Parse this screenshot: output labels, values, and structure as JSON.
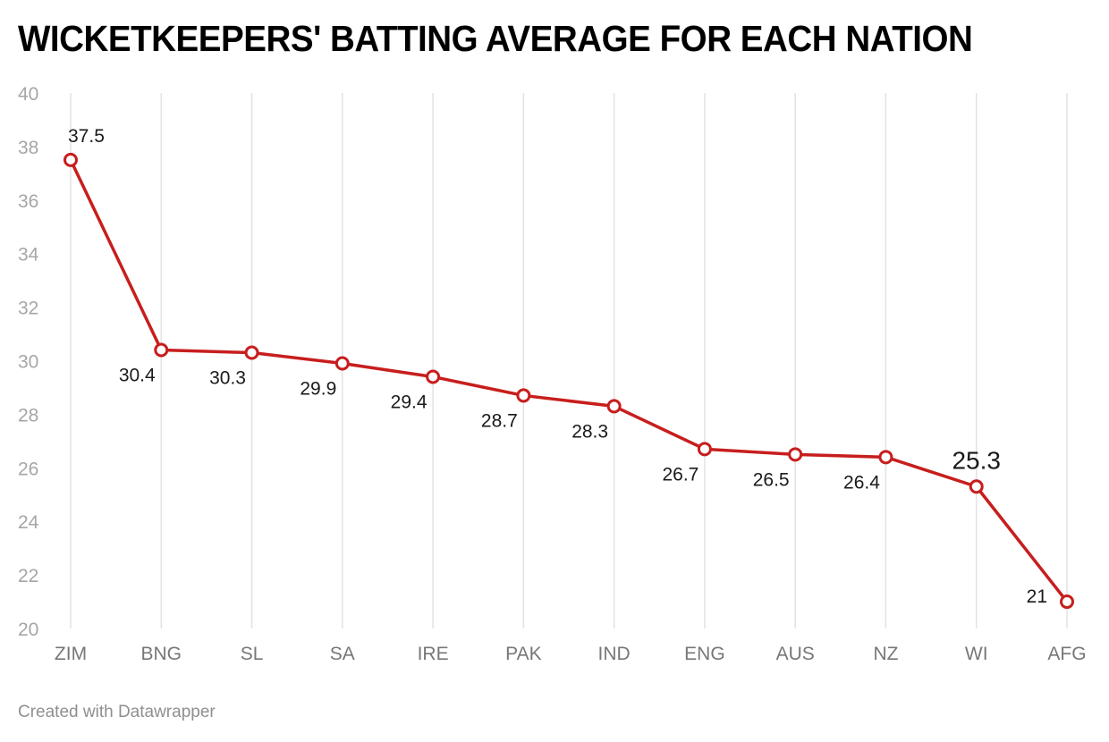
{
  "chart_data": {
    "type": "line",
    "title": "WICKETKEEPERS' BATTING AVERAGE FOR EACH NATION",
    "xlabel": "",
    "ylabel": "",
    "ylim": [
      20,
      40
    ],
    "yticks": [
      40,
      38,
      36,
      34,
      32,
      30,
      28,
      26,
      24,
      22,
      20
    ],
    "grid": "vertical",
    "categories": [
      "ZIM",
      "BNG",
      "SL",
      "SA",
      "IRE",
      "PAK",
      "IND",
      "ENG",
      "AUS",
      "NZ",
      "WI",
      "AFG"
    ],
    "series": [
      {
        "name": "Batting average",
        "color": "#c71e1d",
        "values": [
          37.5,
          30.4,
          30.3,
          29.9,
          29.4,
          28.7,
          28.3,
          26.7,
          26.5,
          26.4,
          25.3,
          21
        ],
        "labels": [
          "37.5",
          "30.4",
          "30.3",
          "29.9",
          "29.4",
          "28.7",
          "28.3",
          "26.7",
          "26.5",
          "26.4",
          "25.3",
          "21"
        ]
      }
    ]
  },
  "footer": "Created with Datawrapper"
}
